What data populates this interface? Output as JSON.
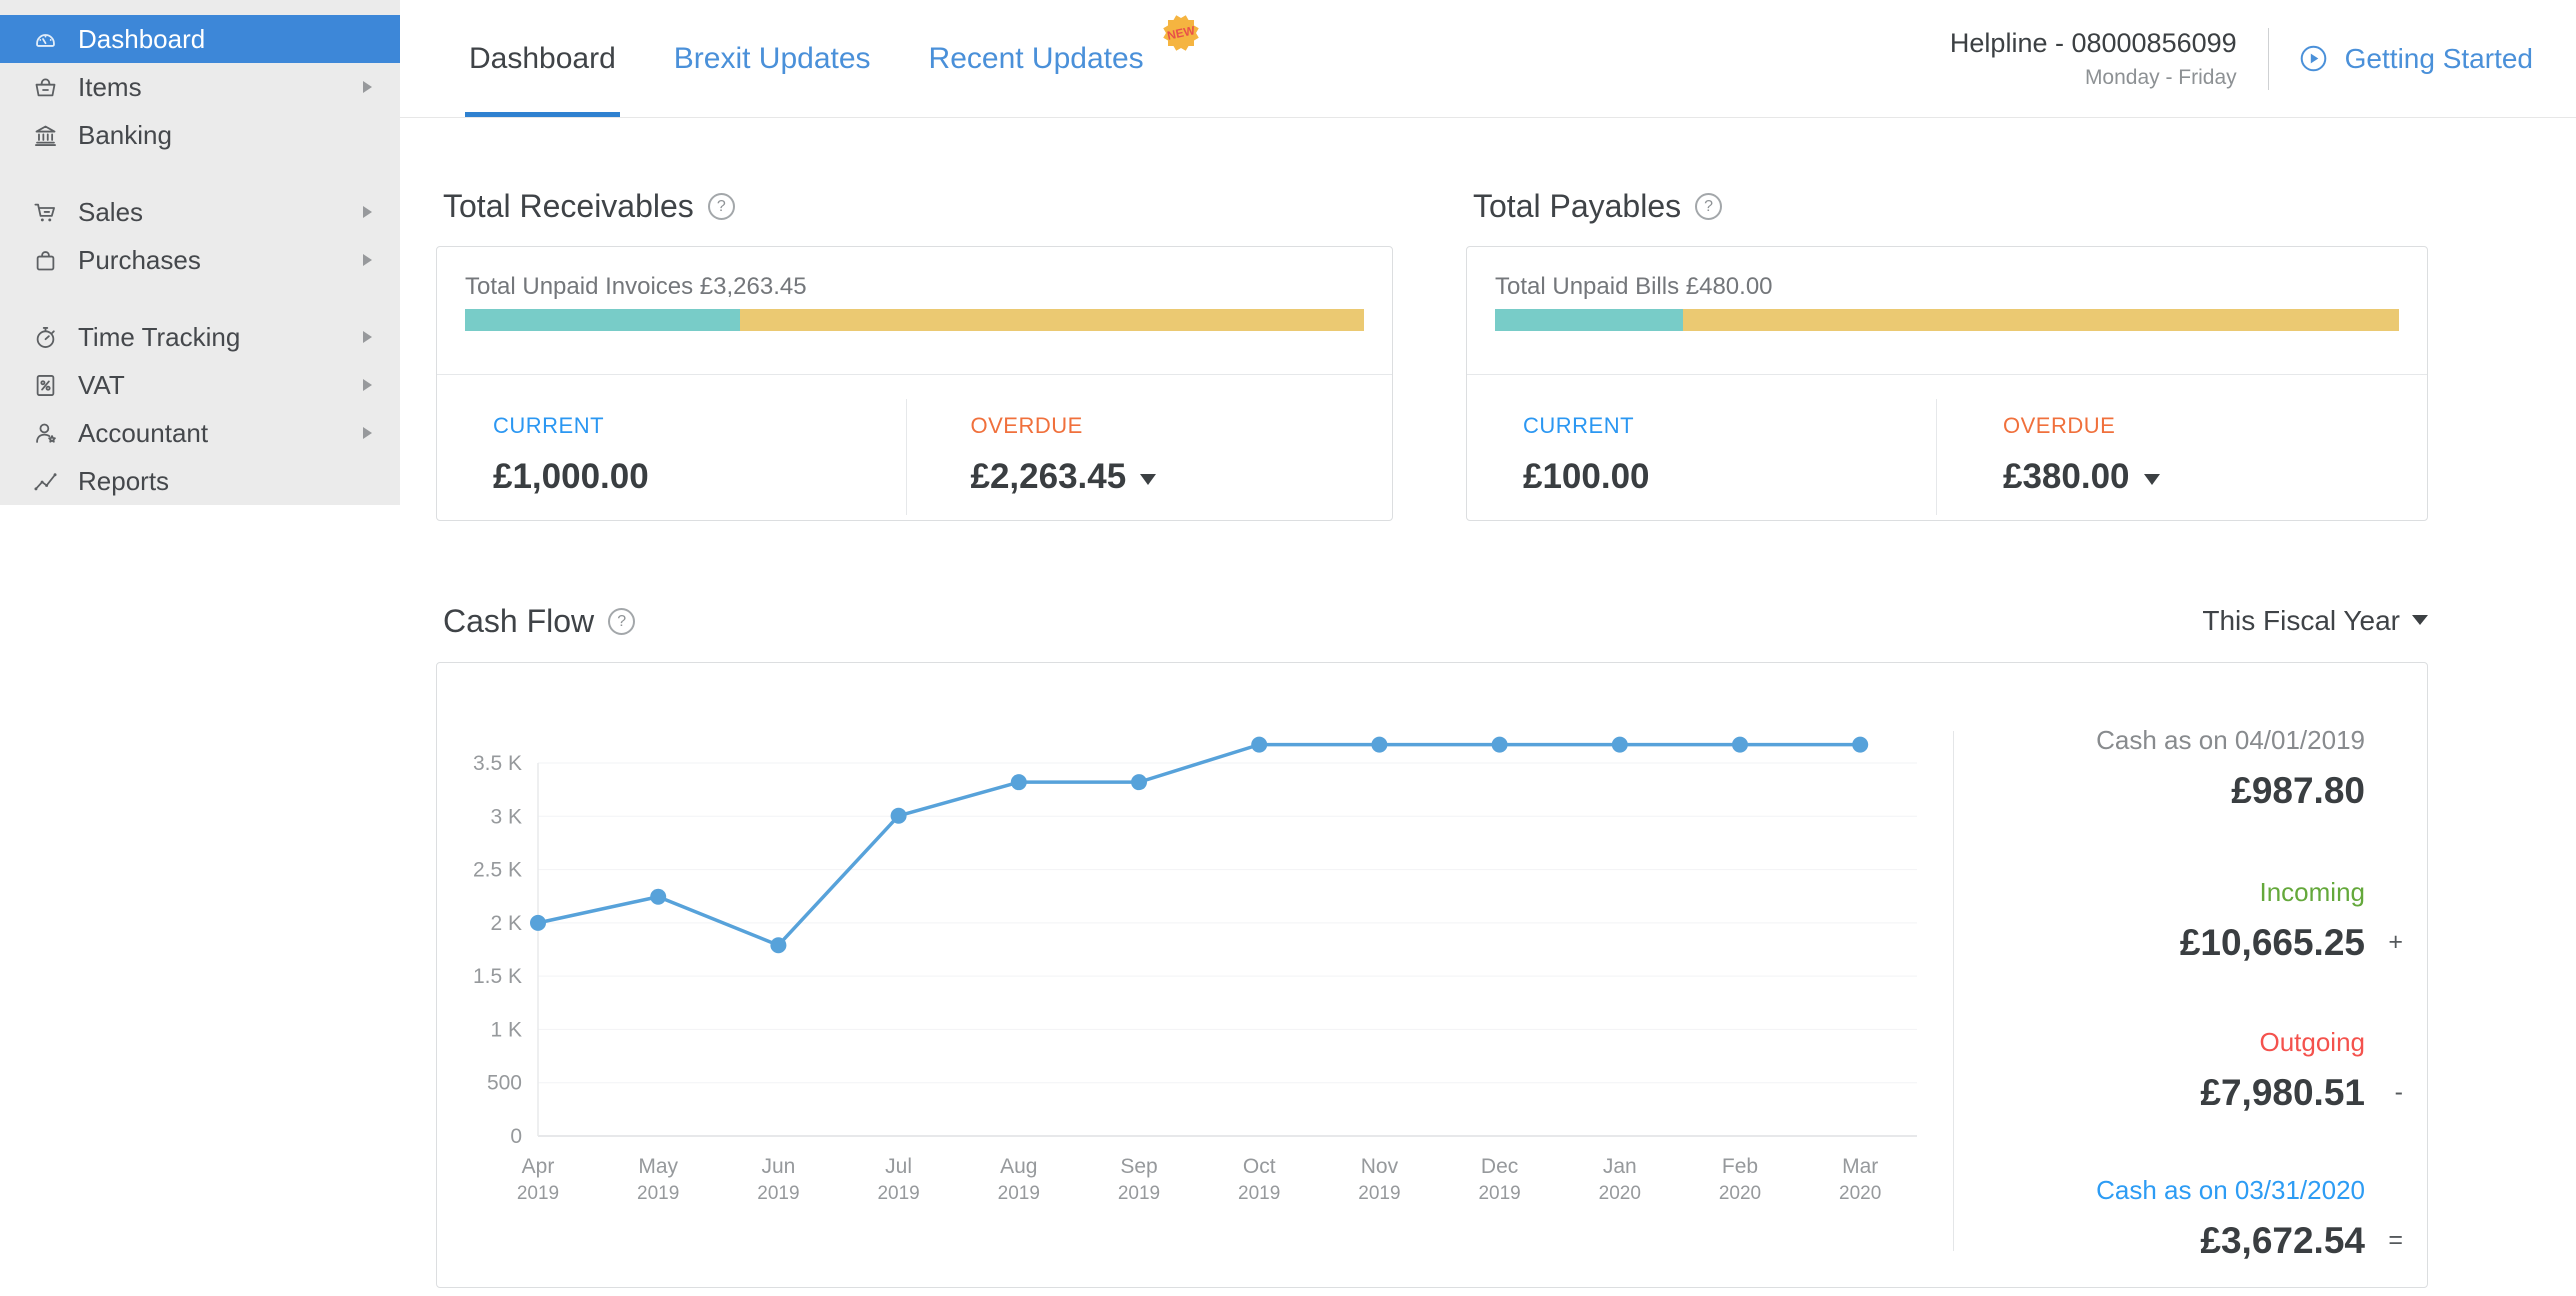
{
  "colors": {
    "sidebar_bg": "#ebebeb",
    "accent_blue": "#3d87d8",
    "link_blue": "#4a90d9",
    "underline_blue": "#2f81d0",
    "teal": "#78ccc8",
    "yellow": "#ebc972",
    "current_blue": "#2b97f2",
    "overdue_orange": "#f0703c",
    "green": "#64a83b",
    "red": "#f4524d",
    "cash_blue": "#2d9cf4",
    "line_blue": "#57a2da",
    "badge_bg": "#f5b440",
    "badge_text": "#e8504a",
    "gray_label": "#888b8e"
  },
  "icons": {
    "help": "?"
  },
  "sidebar": {
    "items": [
      {
        "label": "Dashboard",
        "icon": "dashboard",
        "active": true
      },
      {
        "label": "Items",
        "icon": "basket",
        "arrow": true
      },
      {
        "label": "Banking",
        "icon": "bank"
      },
      {
        "label": "Sales",
        "icon": "cart",
        "arrow": true,
        "gap_before": true
      },
      {
        "label": "Purchases",
        "icon": "bag",
        "arrow": true
      },
      {
        "label": "Time Tracking",
        "icon": "stopwatch",
        "arrow": true,
        "gap_before": true
      },
      {
        "label": "VAT",
        "icon": "vat-document",
        "arrow": true
      },
      {
        "label": "Accountant",
        "icon": "accountant",
        "arrow": true
      },
      {
        "label": "Reports",
        "icon": "reports"
      }
    ]
  },
  "tabs": [
    {
      "label": "Dashboard",
      "active": true
    },
    {
      "label": "Brexit Updates"
    },
    {
      "label": "Recent Updates",
      "badge": "NEW"
    }
  ],
  "header": {
    "helpline": "Helpline - 08000856099",
    "hours": "Monday - Friday",
    "getting_started": "Getting Started"
  },
  "receivables": {
    "title": "Total Receivables",
    "unpaid_label": "Total Unpaid Invoices £3,263.45",
    "current_label": "CURRENT",
    "current_value": "£1,000.00",
    "current_amount": 1000,
    "overdue_label": "OVERDUE",
    "overdue_value": "£2,263.45",
    "overdue_amount": 2263.45
  },
  "payables": {
    "title": "Total Payables",
    "unpaid_label": "Total Unpaid Bills £480.00",
    "current_label": "CURRENT",
    "current_value": "£100.00",
    "current_amount": 100,
    "overdue_label": "OVERDUE",
    "overdue_value": "£380.00",
    "overdue_amount": 380
  },
  "cashflow": {
    "title": "Cash Flow",
    "range_label": "This Fiscal Year",
    "summary": [
      {
        "label": "Cash as on 04/01/2019",
        "value": "£987.80",
        "op": "",
        "label_color": "gray"
      },
      {
        "label": "Incoming",
        "value": "£10,665.25",
        "op": "+",
        "label_color": "green"
      },
      {
        "label": "Outgoing",
        "value": "£7,980.51",
        "op": "-",
        "label_color": "red"
      },
      {
        "label": "Cash as on 03/31/2020",
        "value": "£3,672.54",
        "op": "=",
        "label_color": "blue"
      }
    ]
  },
  "chart_data": {
    "type": "line",
    "title": "Cash Flow",
    "x": [
      "Apr 2019",
      "May 2019",
      "Jun 2019",
      "Jul 2019",
      "Aug 2019",
      "Sep 2019",
      "Oct 2019",
      "Nov 2019",
      "Dec 2019",
      "Jan 2020",
      "Feb 2020",
      "Mar 2020"
    ],
    "values": [
      2000,
      2245,
      1790,
      3005,
      3320,
      3320,
      3672.54,
      3672.54,
      3672.54,
      3672.54,
      3672.54,
      3672.54
    ],
    "ylim": [
      0,
      3500
    ],
    "yticks": [
      {
        "v": 0,
        "label": "0"
      },
      {
        "v": 500,
        "label": "500"
      },
      {
        "v": 1000,
        "label": "1 K"
      },
      {
        "v": 1500,
        "label": "1.5 K"
      },
      {
        "v": 2000,
        "label": "2 K"
      },
      {
        "v": 2500,
        "label": "2.5 K"
      },
      {
        "v": 3000,
        "label": "3 K"
      },
      {
        "v": 3500,
        "label": "3.5 K"
      }
    ],
    "grid": true,
    "legend": false,
    "line_color": "#57a2da"
  }
}
